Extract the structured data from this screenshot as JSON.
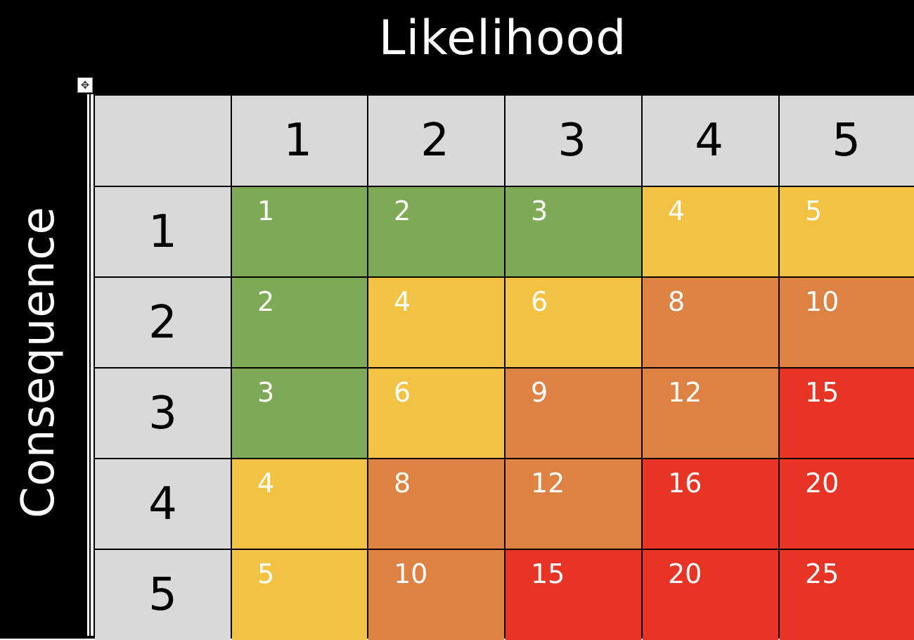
{
  "axis": {
    "top_label": "Likelihood",
    "side_label": "Consequence"
  },
  "table_handle_icon": "move-arrows-icon",
  "columns": [
    "1",
    "2",
    "3",
    "4",
    "5"
  ],
  "rows": [
    {
      "label": "1",
      "cells": [
        {
          "value": "1",
          "level": "low"
        },
        {
          "value": "2",
          "level": "low"
        },
        {
          "value": "3",
          "level": "low"
        },
        {
          "value": "4",
          "level": "medium"
        },
        {
          "value": "5",
          "level": "medium"
        }
      ]
    },
    {
      "label": "2",
      "cells": [
        {
          "value": "2",
          "level": "low"
        },
        {
          "value": "4",
          "level": "medium"
        },
        {
          "value": "6",
          "level": "medium"
        },
        {
          "value": "8",
          "level": "high"
        },
        {
          "value": "10",
          "level": "high"
        }
      ]
    },
    {
      "label": "3",
      "cells": [
        {
          "value": "3",
          "level": "low"
        },
        {
          "value": "6",
          "level": "medium"
        },
        {
          "value": "9",
          "level": "high"
        },
        {
          "value": "12",
          "level": "high"
        },
        {
          "value": "15",
          "level": "extreme"
        }
      ]
    },
    {
      "label": "4",
      "cells": [
        {
          "value": "4",
          "level": "medium"
        },
        {
          "value": "8",
          "level": "high"
        },
        {
          "value": "12",
          "level": "high"
        },
        {
          "value": "16",
          "level": "extreme"
        },
        {
          "value": "20",
          "level": "extreme"
        }
      ]
    },
    {
      "label": "5",
      "cells": [
        {
          "value": "5",
          "level": "medium"
        },
        {
          "value": "10",
          "level": "high"
        },
        {
          "value": "15",
          "level": "extreme"
        },
        {
          "value": "20",
          "level": "extreme"
        },
        {
          "value": "25",
          "level": "extreme"
        }
      ]
    }
  ],
  "colors": {
    "low": "#7faa55",
    "medium": "#f4c243",
    "high": "#de8244",
    "extreme": "#e83424",
    "header": "#d9d9d9",
    "background": "#000000"
  }
}
